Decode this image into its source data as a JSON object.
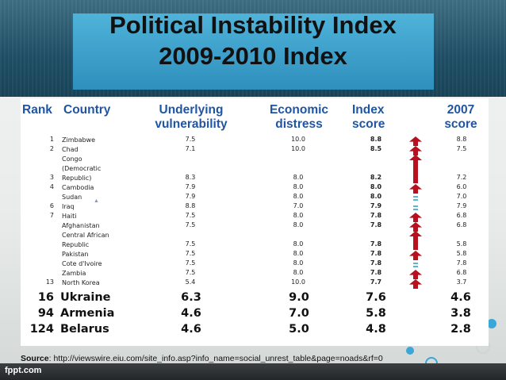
{
  "title": {
    "line1": "Political Instability Index",
    "line2": "2009-2010 Index"
  },
  "headers": {
    "rank": "Rank",
    "country": "Country",
    "underlying": "Underlying\nvulnerability",
    "economic": "Economic\ndistress",
    "index": "Index\nscore",
    "score2007": "2007\nscore"
  },
  "rows": [
    {
      "rank": "1",
      "country": "Zimbabwe",
      "underlying": "7.5",
      "economic": "10.0",
      "index": "8.8",
      "score2007": "8.8"
    },
    {
      "rank": "2",
      "country": "Chad",
      "underlying": "7.1",
      "economic": "10.0",
      "index": "8.5",
      "score2007": "7.5"
    },
    {
      "rank": "3",
      "country": "Congo\n(Democratic\nRepublic)",
      "underlying": "8.3",
      "economic": "8.0",
      "index": "8.2",
      "score2007": "7.2"
    },
    {
      "rank": "4",
      "country": "Cambodia",
      "underlying": "7.9",
      "economic": "8.0",
      "index": "8.0",
      "score2007": "6.0"
    },
    {
      "rank": "",
      "country": "Sudan",
      "underlying": "7.9",
      "economic": "8.0",
      "index": "8.0",
      "score2007": "7.0"
    },
    {
      "rank": "6",
      "country": "Iraq",
      "underlying": "8.8",
      "economic": "7.0",
      "index": "7.9",
      "score2007": "7.9"
    },
    {
      "rank": "7",
      "country": "Haiti",
      "underlying": "7.5",
      "economic": "8.0",
      "index": "7.8",
      "score2007": "6.8"
    },
    {
      "rank": "",
      "country": "Afghanistan",
      "underlying": "7.5",
      "economic": "8.0",
      "index": "7.8",
      "score2007": "6.8"
    },
    {
      "rank": "",
      "country": "Central African\nRepublic",
      "underlying": "7.5",
      "economic": "8.0",
      "index": "7.8",
      "score2007": "5.8"
    },
    {
      "rank": "",
      "country": "Pakistan",
      "underlying": "7.5",
      "economic": "8.0",
      "index": "7.8",
      "score2007": "5.8"
    },
    {
      "rank": "",
      "country": "Cote d'Ivoire",
      "underlying": "7.5",
      "economic": "8.0",
      "index": "7.8",
      "score2007": "7.8"
    },
    {
      "rank": "",
      "country": "Zambia",
      "underlying": "7.5",
      "economic": "8.0",
      "index": "7.8",
      "score2007": "6.8"
    },
    {
      "rank": "13",
      "country": "North Korea",
      "underlying": "5.4",
      "economic": "10.0",
      "index": "7.7",
      "score2007": "3.7"
    }
  ],
  "highlight_rows": [
    {
      "rank": "16",
      "country": "Ukraine",
      "underlying": "6.3",
      "economic": "9.0",
      "index": "7.6",
      "score2007": "4.6"
    },
    {
      "rank": "94",
      "country": "Armenia",
      "underlying": "4.6",
      "economic": "7.0",
      "index": "5.8",
      "score2007": "3.8"
    },
    {
      "rank": "124",
      "country": "Belarus",
      "underlying": "4.6",
      "economic": "5.0",
      "index": "4.8",
      "score2007": "2.8"
    }
  ],
  "change_icons": [
    "up-arrow-icon",
    "up-arrow-icon",
    "up-arrow-icon",
    "up-arrow-icon",
    "equal-icon",
    "equal-icon",
    "up-arrow-icon",
    "up-arrow-icon",
    "up-arrow-icon",
    "up-arrow-icon",
    "equal-icon",
    "up-arrow-icon",
    "up-arrow-icon"
  ],
  "colors": {
    "header_text": "#1f55a2",
    "arrow": "#b8101e",
    "equal": "#5ab3d6",
    "title_bar": "#3a9fcb"
  },
  "source": {
    "label": "Source",
    "text": ": http://viewswire.eiu.com/site_info.asp?info_name=social_unrest_table&page=noads&rf=0"
  },
  "footer": {
    "brand": "fppt.com"
  }
}
